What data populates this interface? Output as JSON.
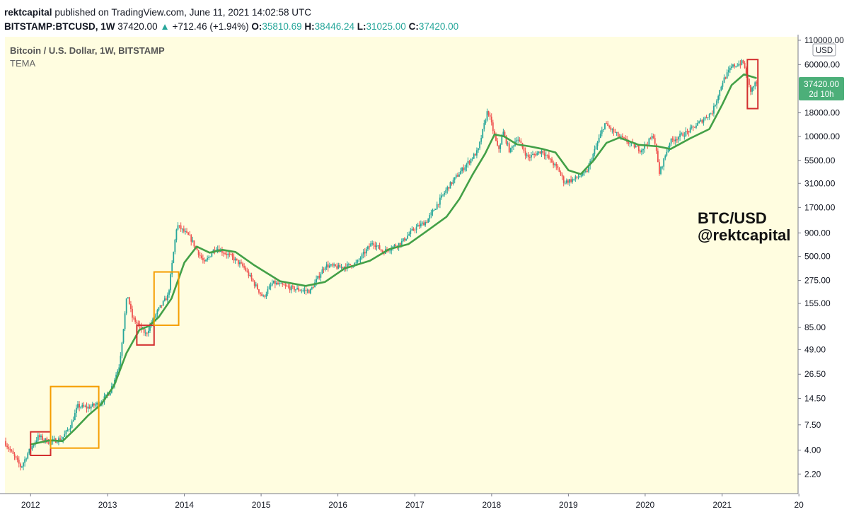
{
  "header": {
    "author": "rektcapital",
    "published": "published on TradingView.com, June 11, 2021 14:02:58 UTC",
    "symbol": "BITSTAMP:BTCUSD, 1W",
    "last": "37420.00",
    "up_arrow": "▲",
    "change": "+712.46 (+1.94%)",
    "o_label": "O:",
    "o_value": "35810.69",
    "h_label": "H:",
    "h_value": "38446.24",
    "l_label": "L:",
    "l_value": "31025.00",
    "c_label": "C:",
    "c_value": "37420.00"
  },
  "colors": {
    "background": "#fffde0",
    "candle_up": "#26a69a",
    "candle_down": "#ef5350",
    "tema": "#43a047",
    "box_red": "#d32f2f",
    "box_orange": "#f59d00",
    "price_tag": "#4caf79"
  },
  "chart_data": {
    "type": "line",
    "title": "Bitcoin / U.S. Dollar, 1W, BITSTAMP",
    "indicator": "TEMA",
    "currency": "USD",
    "y_scale": "log",
    "ylim": [
      1.35,
      120000
    ],
    "xlim": [
      "2011-09-01",
      "2021-12-28"
    ],
    "x_ticks": [
      "2012",
      "2013",
      "2014",
      "2015",
      "2016",
      "2017",
      "2018",
      "2019",
      "2020",
      "2021",
      "20"
    ],
    "y_ticks": [
      "110000.00",
      "60000.00",
      "18000.00",
      "10000.00",
      "5500.00",
      "3100.00",
      "1700.00",
      "900.00",
      "500.00",
      "275.00",
      "155.00",
      "85.00",
      "49.00",
      "26.50",
      "14.50",
      "7.50",
      "4.00",
      "2.20"
    ],
    "last_price": "37420.00",
    "last_price_countdown": "2d 10h",
    "price_series": [
      {
        "date": "2011-09-01",
        "price": 5.0
      },
      {
        "date": "2011-10-15",
        "price": 3.5
      },
      {
        "date": "2011-11-20",
        "price": 2.6
      },
      {
        "date": "2011-12-25",
        "price": 3.8
      },
      {
        "date": "2012-02-10",
        "price": 5.6
      },
      {
        "date": "2012-04-01",
        "price": 4.9
      },
      {
        "date": "2012-06-01",
        "price": 5.3
      },
      {
        "date": "2012-07-15",
        "price": 7.5
      },
      {
        "date": "2012-08-15",
        "price": 12.0
      },
      {
        "date": "2012-10-01",
        "price": 11.5
      },
      {
        "date": "2012-12-01",
        "price": 13.0
      },
      {
        "date": "2013-01-15",
        "price": 17.0
      },
      {
        "date": "2013-03-01",
        "price": 33.0
      },
      {
        "date": "2013-04-08",
        "price": 200.0
      },
      {
        "date": "2013-05-01",
        "price": 110.0
      },
      {
        "date": "2013-07-05",
        "price": 72.0
      },
      {
        "date": "2013-09-01",
        "price": 130.0
      },
      {
        "date": "2013-10-20",
        "price": 190.0
      },
      {
        "date": "2013-11-30",
        "price": 1100.0
      },
      {
        "date": "2014-02-01",
        "price": 800.0
      },
      {
        "date": "2014-04-10",
        "price": 420.0
      },
      {
        "date": "2014-06-01",
        "price": 630.0
      },
      {
        "date": "2014-08-15",
        "price": 500.0
      },
      {
        "date": "2014-10-15",
        "price": 380.0
      },
      {
        "date": "2015-01-14",
        "price": 180.0
      },
      {
        "date": "2015-03-01",
        "price": 260.0
      },
      {
        "date": "2015-06-01",
        "price": 225.0
      },
      {
        "date": "2015-08-25",
        "price": 210.0
      },
      {
        "date": "2015-11-05",
        "price": 400.0
      },
      {
        "date": "2016-01-15",
        "price": 380.0
      },
      {
        "date": "2016-04-01",
        "price": 420.0
      },
      {
        "date": "2016-06-18",
        "price": 720.0
      },
      {
        "date": "2016-08-05",
        "price": 560.0
      },
      {
        "date": "2016-11-01",
        "price": 710.0
      },
      {
        "date": "2017-01-01",
        "price": 1000.0
      },
      {
        "date": "2017-03-01",
        "price": 1200.0
      },
      {
        "date": "2017-06-10",
        "price": 2800.0
      },
      {
        "date": "2017-09-01",
        "price": 4800.0
      },
      {
        "date": "2017-11-01",
        "price": 7000.0
      },
      {
        "date": "2017-12-17",
        "price": 19500.0
      },
      {
        "date": "2018-02-05",
        "price": 7000.0
      },
      {
        "date": "2018-03-01",
        "price": 11000.0
      },
      {
        "date": "2018-04-01",
        "price": 6800.0
      },
      {
        "date": "2018-05-05",
        "price": 9800.0
      },
      {
        "date": "2018-06-25",
        "price": 5900.0
      },
      {
        "date": "2018-09-01",
        "price": 7000.0
      },
      {
        "date": "2018-11-20",
        "price": 4300.0
      },
      {
        "date": "2018-12-15",
        "price": 3200.0
      },
      {
        "date": "2019-02-01",
        "price": 3450.0
      },
      {
        "date": "2019-04-01",
        "price": 4100.0
      },
      {
        "date": "2019-06-26",
        "price": 13800.0
      },
      {
        "date": "2019-09-01",
        "price": 10000.0
      },
      {
        "date": "2019-12-15",
        "price": 7100.0
      },
      {
        "date": "2020-02-15",
        "price": 10300.0
      },
      {
        "date": "2020-03-12",
        "price": 4000.0
      },
      {
        "date": "2020-05-01",
        "price": 8800.0
      },
      {
        "date": "2020-08-01",
        "price": 11500.0
      },
      {
        "date": "2020-11-20",
        "price": 18500.0
      },
      {
        "date": "2021-01-08",
        "price": 40000.0
      },
      {
        "date": "2021-02-20",
        "price": 57000.0
      },
      {
        "date": "2021-04-14",
        "price": 64000.0
      },
      {
        "date": "2021-05-19",
        "price": 31000.0
      },
      {
        "date": "2021-06-11",
        "price": 37420.0
      }
    ],
    "series": [
      {
        "name": "",
        "values": [
          {
            "date": "2012-01-01",
            "price": 4.6
          },
          {
            "date": "2012-04-01",
            "price": 5.1
          },
          {
            "date": "2012-06-01",
            "price": 5.0
          },
          {
            "date": "2012-08-01",
            "price": 6.8
          },
          {
            "date": "2012-10-01",
            "price": 9.5
          },
          {
            "date": "2012-12-01",
            "price": 12.5
          },
          {
            "date": "2013-02-01",
            "price": 20.0
          },
          {
            "date": "2013-04-01",
            "price": 45.0
          },
          {
            "date": "2013-06-01",
            "price": 80.0
          },
          {
            "date": "2013-07-15",
            "price": 88.0
          },
          {
            "date": "2013-09-01",
            "price": 110.0
          },
          {
            "date": "2013-11-01",
            "price": 175.0
          },
          {
            "date": "2014-01-01",
            "price": 430.0
          },
          {
            "date": "2014-03-01",
            "price": 640.0
          },
          {
            "date": "2014-05-01",
            "price": 550.0
          },
          {
            "date": "2014-07-01",
            "price": 590.0
          },
          {
            "date": "2014-09-01",
            "price": 560.0
          },
          {
            "date": "2014-12-01",
            "price": 400.0
          },
          {
            "date": "2015-04-01",
            "price": 270.0
          },
          {
            "date": "2015-08-01",
            "price": 240.0
          },
          {
            "date": "2015-11-01",
            "price": 265.0
          },
          {
            "date": "2016-02-01",
            "price": 370.0
          },
          {
            "date": "2016-06-01",
            "price": 450.0
          },
          {
            "date": "2016-09-01",
            "price": 600.0
          },
          {
            "date": "2016-12-01",
            "price": 680.0
          },
          {
            "date": "2017-03-01",
            "price": 950.0
          },
          {
            "date": "2017-06-01",
            "price": 1350.0
          },
          {
            "date": "2017-08-01",
            "price": 2100.0
          },
          {
            "date": "2017-10-01",
            "price": 3800.0
          },
          {
            "date": "2017-12-01",
            "price": 6500.0
          },
          {
            "date": "2018-01-15",
            "price": 10500.0
          },
          {
            "date": "2018-03-01",
            "price": 10000.0
          },
          {
            "date": "2018-05-01",
            "price": 8200.0
          },
          {
            "date": "2018-07-01",
            "price": 7800.0
          },
          {
            "date": "2018-09-01",
            "price": 7300.0
          },
          {
            "date": "2018-11-01",
            "price": 6700.0
          },
          {
            "date": "2019-01-01",
            "price": 4300.0
          },
          {
            "date": "2019-03-01",
            "price": 3900.0
          },
          {
            "date": "2019-05-01",
            "price": 5500.0
          },
          {
            "date": "2019-07-01",
            "price": 8500.0
          },
          {
            "date": "2019-09-01",
            "price": 9700.0
          },
          {
            "date": "2019-12-01",
            "price": 8100.0
          },
          {
            "date": "2020-03-01",
            "price": 7800.0
          },
          {
            "date": "2020-05-01",
            "price": 7300.0
          },
          {
            "date": "2020-08-01",
            "price": 9500.0
          },
          {
            "date": "2020-11-01",
            "price": 12000.0
          },
          {
            "date": "2021-01-01",
            "price": 22000.0
          },
          {
            "date": "2021-02-15",
            "price": 36000.0
          },
          {
            "date": "2021-04-15",
            "price": 47000.0
          },
          {
            "date": "2021-06-11",
            "price": 43000.0
          }
        ]
      }
    ],
    "boxes": [
      {
        "color": "red",
        "x_from": "2012-01-01",
        "x_to": "2012-04-05",
        "y_from": 3.5,
        "y_to": 6.3
      },
      {
        "color": "orange",
        "x_from": "2012-04-05",
        "x_to": "2012-11-20",
        "y_from": 4.2,
        "y_to": 19.5
      },
      {
        "color": "red",
        "x_from": "2013-05-20",
        "x_to": "2013-08-10",
        "y_from": 55.0,
        "y_to": 90.0
      },
      {
        "color": "orange",
        "x_from": "2013-08-10",
        "x_to": "2013-12-05",
        "y_from": 90.0,
        "y_to": 340.0
      },
      {
        "color": "red",
        "x_from": "2021-05-01",
        "x_to": "2021-06-20",
        "y_from": 20000.0,
        "y_to": 68000.0
      }
    ],
    "annotation": {
      "line1": "BTC/USD",
      "line2": "@rektcapital"
    }
  }
}
